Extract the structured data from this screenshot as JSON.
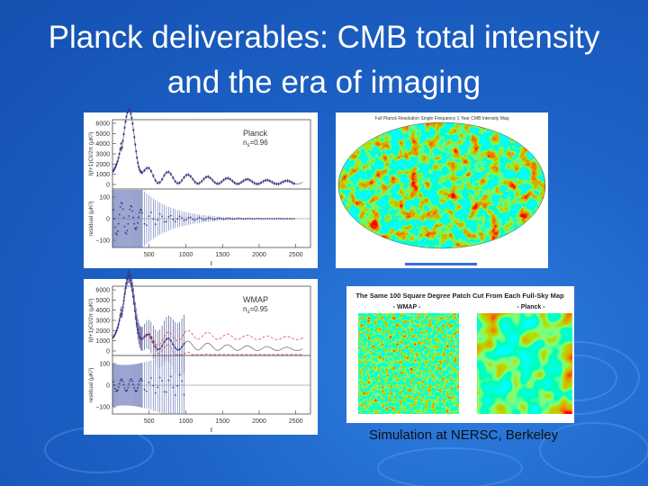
{
  "title": [
    "Planck deliverables: CMB total intensity",
    "and the era of imaging"
  ],
  "plots": [
    {
      "label": "Planck",
      "param_n": "n",
      "param_sub": "s",
      "param_value": "=0.96",
      "y_label": "ℓ(ℓ+1)Cℓ/2π (μK²)",
      "residual_label": "residual (μK²)",
      "yticks": [
        6000,
        5000,
        4000,
        3000,
        2000,
        1000,
        0
      ],
      "residual_ticks": [
        100,
        0,
        {
          "value": -100,
          "label": "−100"
        }
      ],
      "xticks": [
        500,
        1000,
        1500,
        2000,
        2500
      ],
      "x_label": "ℓ"
    },
    {
      "label": "WMAP",
      "param_n": "n",
      "param_sub": "s",
      "param_value": "=0.95",
      "y_label": "ℓ(ℓ+1)Cℓ/2π (μK²)",
      "residual_label": "residual (μK²)",
      "yticks": [
        6000,
        5000,
        4000,
        3000,
        2000,
        1000,
        0
      ],
      "residual_ticks": [
        100,
        0,
        {
          "value": -100,
          "label": "−100"
        }
      ],
      "xticks": [
        500,
        1000,
        1500,
        2000,
        2500
      ],
      "x_label": "ℓ"
    }
  ],
  "map": {
    "title": "Full Planck Resolution Single Frequency 1 Year CMB Intensity Map"
  },
  "patches": {
    "title": "The Same 100 Square Degree Patch Cut From Each Full-Sky Map",
    "left": "- WMAP -",
    "right": "- Planck -"
  },
  "caption": "Simulation at NERSC, Berkeley"
}
